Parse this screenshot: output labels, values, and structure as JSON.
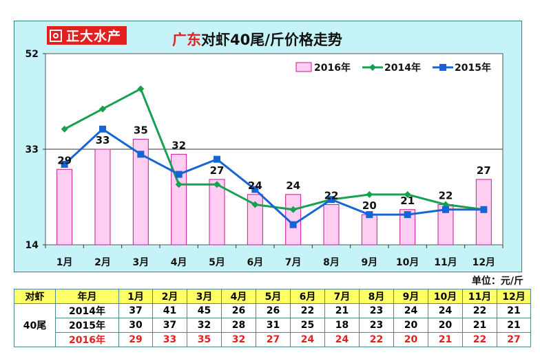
{
  "logo": {
    "text": "正大水产"
  },
  "title": {
    "highlight": "广东",
    "rest": "对虾40尾/斤价格走势"
  },
  "unit": "单位：元/斤",
  "colors": {
    "bar_fill": "#ffccf2",
    "bar_stroke": "#c21b8f",
    "line_2014": "#16a050",
    "line_2015": "#1664d4",
    "panel_bg": "#c6f3f7",
    "table_header_bg": "#ffff66",
    "accent_red": "#e2201f"
  },
  "chart_data": {
    "type": "bar",
    "title": "广东对虾40尾/斤价格走势",
    "categories": [
      "1月",
      "2月",
      "3月",
      "4月",
      "5月",
      "6月",
      "7月",
      "8月",
      "9月",
      "10月",
      "11月",
      "12月"
    ],
    "ylim": [
      14,
      52
    ],
    "yticks": [
      14,
      33,
      52
    ],
    "series": [
      {
        "name": "2016年",
        "kind": "bar",
        "values": [
          29,
          33,
          35,
          32,
          27,
          24,
          24,
          22,
          20,
          21,
          22,
          27
        ]
      },
      {
        "name": "2014年",
        "kind": "line",
        "marker": "diamond",
        "values": [
          37,
          41,
          45,
          26,
          26,
          22,
          21,
          23,
          24,
          24,
          22,
          21
        ]
      },
      {
        "name": "2015年",
        "kind": "line",
        "marker": "square",
        "values": [
          30,
          37,
          32,
          28,
          31,
          25,
          18,
          23,
          20,
          20,
          21,
          21
        ]
      }
    ],
    "legend": "top-right",
    "reference_line": 33
  },
  "table": {
    "corner": "对虾",
    "header_label": "年月",
    "row_group_label": "40尾",
    "months": [
      "1月",
      "2月",
      "3月",
      "4月",
      "5月",
      "6月",
      "7月",
      "8月",
      "9月",
      "10月",
      "11月",
      "12月"
    ],
    "rows": [
      {
        "year": "2014年",
        "values": [
          "37",
          "41",
          "45",
          "26",
          "26",
          "22",
          "21",
          "23",
          "24",
          "24",
          "22",
          "21"
        ]
      },
      {
        "year": "2015年",
        "values": [
          "30",
          "37",
          "32",
          "28",
          "31",
          "25",
          "18",
          "23",
          "20",
          "20",
          "21",
          "21"
        ]
      },
      {
        "year": "2016年",
        "values": [
          "29",
          "33",
          "35",
          "32",
          "27",
          "24",
          "24",
          "22",
          "20",
          "21",
          "22",
          "27"
        ]
      }
    ]
  }
}
